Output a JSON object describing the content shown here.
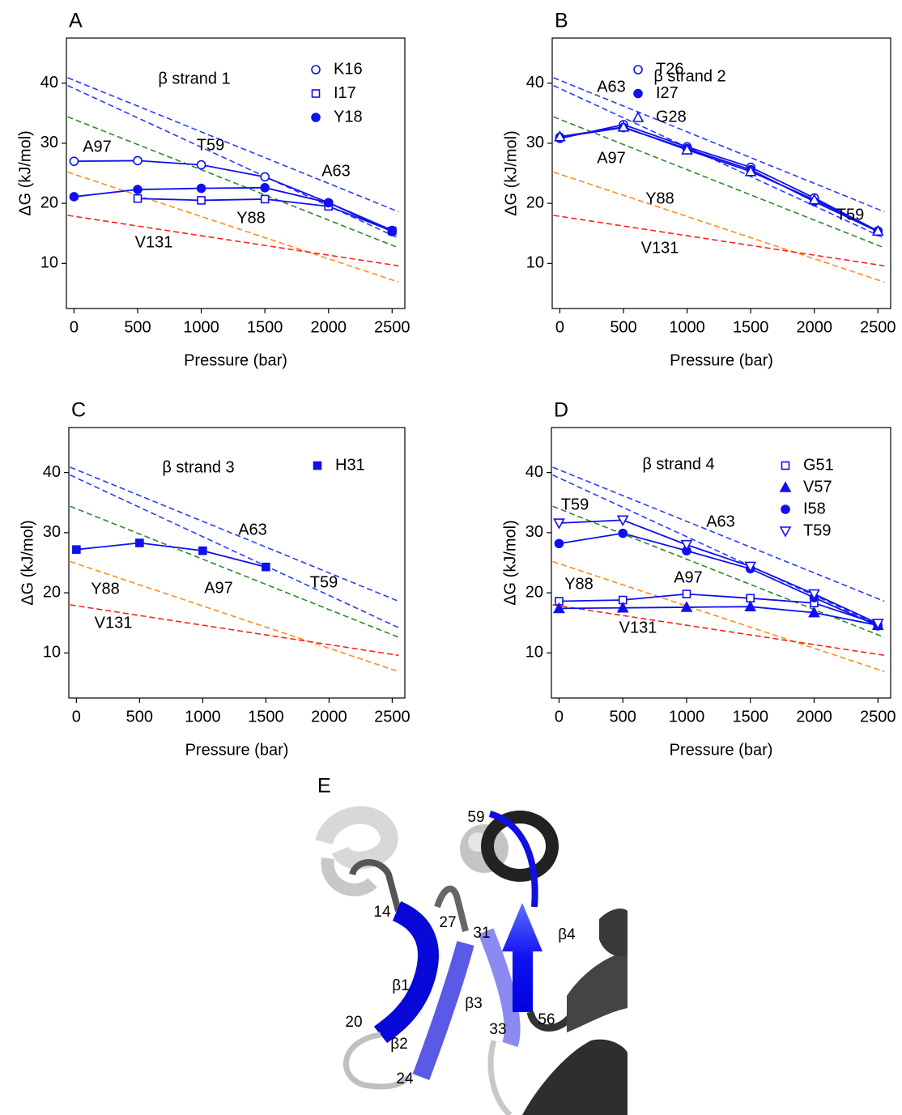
{
  "chart_data": [
    {
      "type": "line",
      "panel": "A",
      "title": "β strand 1",
      "xlabel": "Pressure (bar)",
      "ylabel": "ΔG (kJ/mol)",
      "xlim": [
        -60,
        2600
      ],
      "ylim": [
        2.5,
        47.5
      ],
      "xticks": [
        0,
        500,
        1000,
        1500,
        2000,
        2500
      ],
      "yticks": [
        10,
        20,
        30,
        40
      ],
      "x": [
        0,
        500,
        1000,
        1500,
        2000,
        2500
      ],
      "series": [
        {
          "name": "K16",
          "color": "#1010ee",
          "marker": "circle-open",
          "values": [
            27,
            27.1,
            26.4,
            24.4,
            20.1,
            15.5
          ]
        },
        {
          "name": "I17",
          "color": "#1010ee",
          "marker": "square-open",
          "values": [
            null,
            20.8,
            20.5,
            20.7,
            19.5,
            15.4
          ]
        },
        {
          "name": "Y18",
          "color": "#1010ee",
          "marker": "circle",
          "values": [
            21.1,
            22.3,
            22.5,
            22.6,
            20.1,
            15.3
          ]
        }
      ],
      "reference_lines": [
        {
          "name": "A63",
          "color": "#2a3cff",
          "x": [
            -50,
            2550
          ],
          "values": [
            40.9,
            18.6
          ]
        },
        {
          "name": "T59",
          "color": "#2a3cff",
          "x": [
            -50,
            2550
          ],
          "values": [
            39.6,
            14.2
          ]
        },
        {
          "name": "A97",
          "color": "#2a8a2a",
          "x": [
            -50,
            2550
          ],
          "values": [
            34.4,
            12.6
          ]
        },
        {
          "name": "Y88",
          "color": "#ff8c1a",
          "x": [
            -50,
            2550
          ],
          "values": [
            25.2,
            6.9
          ]
        },
        {
          "name": "V131",
          "color": "#ff2020",
          "x": [
            -50,
            2550
          ],
          "values": [
            18.0,
            9.6
          ]
        }
      ]
    },
    {
      "type": "line",
      "panel": "B",
      "title": "β strand 2",
      "xlabel": "Pressure (bar)",
      "ylabel": "ΔG (kJ/mol)",
      "xlim": [
        -60,
        2600
      ],
      "ylim": [
        2.5,
        47.5
      ],
      "xticks": [
        0,
        500,
        1000,
        1500,
        2000,
        2500
      ],
      "yticks": [
        10,
        20,
        30,
        40
      ],
      "x": [
        0,
        500,
        1000,
        1500,
        2000,
        2500
      ],
      "series": [
        {
          "name": "T26",
          "color": "#1010ee",
          "marker": "circle-open",
          "values": [
            30.8,
            33.1,
            29.4,
            26.0,
            20.9,
            15.4
          ]
        },
        {
          "name": "I27",
          "color": "#1010ee",
          "marker": "circle",
          "values": [
            31.0,
            32.6,
            29.1,
            25.6,
            20.3,
            15.3
          ]
        },
        {
          "name": "G28",
          "color": "#1010ee",
          "marker": "triangle-open",
          "values": [
            31.1,
            32.7,
            28.9,
            25.3,
            20.6,
            15.4
          ]
        }
      ],
      "reference_lines": [
        {
          "name": "A63",
          "color": "#2a3cff",
          "x": [
            -50,
            2550
          ],
          "values": [
            40.9,
            18.6
          ]
        },
        {
          "name": "T59",
          "color": "#2a3cff",
          "x": [
            -50,
            2550
          ],
          "values": [
            39.6,
            14.2
          ]
        },
        {
          "name": "A97",
          "color": "#2a8a2a",
          "x": [
            -50,
            2550
          ],
          "values": [
            34.4,
            12.6
          ]
        },
        {
          "name": "Y88",
          "color": "#ff8c1a",
          "x": [
            -50,
            2550
          ],
          "values": [
            25.2,
            6.9
          ]
        },
        {
          "name": "V131",
          "color": "#ff2020",
          "x": [
            -50,
            2550
          ],
          "values": [
            18.0,
            9.6
          ]
        }
      ]
    },
    {
      "type": "line",
      "panel": "C",
      "title": "β strand 3",
      "xlabel": "Pressure (bar)",
      "ylabel": "ΔG (kJ/mol)",
      "xlim": [
        -60,
        2600
      ],
      "ylim": [
        2.5,
        47.5
      ],
      "xticks": [
        0,
        500,
        1000,
        1500,
        2000,
        2500
      ],
      "yticks": [
        10,
        20,
        30,
        40
      ],
      "x": [
        0,
        500,
        1000,
        1500,
        2000,
        2500
      ],
      "series": [
        {
          "name": "H31",
          "color": "#1010ee",
          "marker": "square",
          "values": [
            27.2,
            28.3,
            27.0,
            24.3,
            null,
            null
          ]
        }
      ],
      "reference_lines": [
        {
          "name": "A63",
          "color": "#2a3cff",
          "x": [
            -50,
            2550
          ],
          "values": [
            40.9,
            18.6
          ]
        },
        {
          "name": "T59",
          "color": "#2a3cff",
          "x": [
            -50,
            2550
          ],
          "values": [
            39.6,
            14.2
          ]
        },
        {
          "name": "A97",
          "color": "#2a8a2a",
          "x": [
            -50,
            2550
          ],
          "values": [
            34.4,
            12.6
          ]
        },
        {
          "name": "Y88",
          "color": "#ff8c1a",
          "x": [
            -50,
            2550
          ],
          "values": [
            25.2,
            6.9
          ]
        },
        {
          "name": "V131",
          "color": "#ff2020",
          "x": [
            -50,
            2550
          ],
          "values": [
            18.0,
            9.6
          ]
        }
      ]
    },
    {
      "type": "line",
      "panel": "D",
      "title": "β strand 4",
      "xlabel": "Pressure (bar)",
      "ylabel": "ΔG (kJ/mol)",
      "xlim": [
        -60,
        2600
      ],
      "ylim": [
        2.5,
        47.5
      ],
      "xticks": [
        0,
        500,
        1000,
        1500,
        2000,
        2500
      ],
      "yticks": [
        10,
        20,
        30,
        40
      ],
      "x": [
        0,
        500,
        1000,
        1500,
        2000,
        2500
      ],
      "series": [
        {
          "name": "G51",
          "color": "#1010ee",
          "marker": "square-open",
          "values": [
            18.6,
            18.8,
            19.8,
            19.1,
            18.3,
            14.8
          ]
        },
        {
          "name": "V57",
          "color": "#1010ee",
          "marker": "triangle",
          "values": [
            17.4,
            17.5,
            17.6,
            17.7,
            16.7,
            14.6
          ]
        },
        {
          "name": "I58",
          "color": "#1010ee",
          "marker": "circle",
          "values": [
            28.2,
            29.9,
            27.0,
            24.0,
            19.2,
            14.5
          ]
        },
        {
          "name": "T59",
          "color": "#1010ee",
          "marker": "triangle-down-open",
          "values": [
            31.6,
            32.1,
            28.0,
            24.4,
            19.8,
            14.9
          ]
        }
      ],
      "reference_lines": [
        {
          "name": "A63",
          "color": "#2a3cff",
          "x": [
            -50,
            2550
          ],
          "values": [
            40.9,
            18.6
          ]
        },
        {
          "name": "T59",
          "color": "#2a3cff",
          "x": [
            -50,
            2550
          ],
          "values": [
            39.6,
            14.2
          ]
        },
        {
          "name": "A97",
          "color": "#2a8a2a",
          "x": [
            -50,
            2550
          ],
          "values": [
            34.4,
            12.6
          ]
        },
        {
          "name": "Y88",
          "color": "#ff8c1a",
          "x": [
            -50,
            2550
          ],
          "values": [
            25.2,
            6.9
          ]
        },
        {
          "name": "V131",
          "color": "#ff2020",
          "x": [
            -50,
            2550
          ],
          "values": [
            18.0,
            9.6
          ]
        }
      ]
    }
  ],
  "structure_panel": {
    "panel": "E",
    "residue_labels": [
      "59",
      "14",
      "27",
      "31",
      "20",
      "33",
      "56",
      "24"
    ],
    "strand_labels": [
      "β1",
      "β2",
      "β3",
      "β4"
    ]
  }
}
